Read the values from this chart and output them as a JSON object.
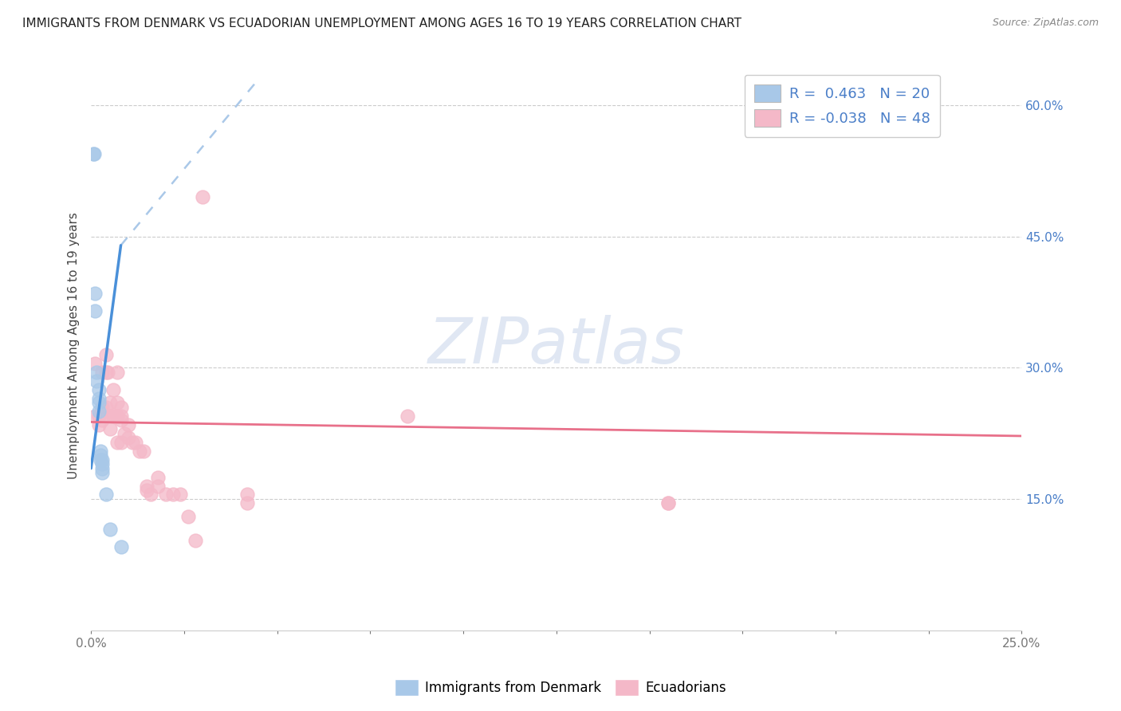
{
  "title": "IMMIGRANTS FROM DENMARK VS ECUADORIAN UNEMPLOYMENT AMONG AGES 16 TO 19 YEARS CORRELATION CHART",
  "source": "Source: ZipAtlas.com",
  "ylabel": "Unemployment Among Ages 16 to 19 years",
  "xlim": [
    0.0,
    0.25
  ],
  "ylim": [
    0.0,
    0.65
  ],
  "blue_color": "#a8c8e8",
  "pink_color": "#f4b8c8",
  "blue_line_color": "#4a90d9",
  "pink_line_color": "#e8708a",
  "dashed_line_color": "#aac8e8",
  "watermark": "ZIPatlas",
  "denmark_points": [
    [
      0.0005,
      0.545
    ],
    [
      0.0008,
      0.545
    ],
    [
      0.001,
      0.385
    ],
    [
      0.001,
      0.365
    ],
    [
      0.0015,
      0.295
    ],
    [
      0.0015,
      0.285
    ],
    [
      0.002,
      0.275
    ],
    [
      0.002,
      0.265
    ],
    [
      0.002,
      0.26
    ],
    [
      0.002,
      0.25
    ],
    [
      0.0025,
      0.205
    ],
    [
      0.0025,
      0.2
    ],
    [
      0.0025,
      0.195
    ],
    [
      0.003,
      0.195
    ],
    [
      0.003,
      0.19
    ],
    [
      0.003,
      0.185
    ],
    [
      0.003,
      0.18
    ],
    [
      0.004,
      0.155
    ],
    [
      0.005,
      0.115
    ],
    [
      0.008,
      0.095
    ]
  ],
  "ecuador_points": [
    [
      0.001,
      0.305
    ],
    [
      0.001,
      0.245
    ],
    [
      0.002,
      0.245
    ],
    [
      0.002,
      0.235
    ],
    [
      0.003,
      0.295
    ],
    [
      0.003,
      0.255
    ],
    [
      0.003,
      0.24
    ],
    [
      0.004,
      0.315
    ],
    [
      0.004,
      0.295
    ],
    [
      0.004,
      0.255
    ],
    [
      0.0045,
      0.295
    ],
    [
      0.005,
      0.26
    ],
    [
      0.005,
      0.245
    ],
    [
      0.005,
      0.23
    ],
    [
      0.006,
      0.275
    ],
    [
      0.006,
      0.245
    ],
    [
      0.006,
      0.245
    ],
    [
      0.007,
      0.295
    ],
    [
      0.007,
      0.26
    ],
    [
      0.007,
      0.245
    ],
    [
      0.007,
      0.245
    ],
    [
      0.007,
      0.215
    ],
    [
      0.008,
      0.255
    ],
    [
      0.008,
      0.245
    ],
    [
      0.008,
      0.24
    ],
    [
      0.008,
      0.215
    ],
    [
      0.009,
      0.225
    ],
    [
      0.01,
      0.235
    ],
    [
      0.01,
      0.22
    ],
    [
      0.011,
      0.215
    ],
    [
      0.012,
      0.215
    ],
    [
      0.013,
      0.205
    ],
    [
      0.014,
      0.205
    ],
    [
      0.015,
      0.165
    ],
    [
      0.015,
      0.16
    ],
    [
      0.016,
      0.155
    ],
    [
      0.018,
      0.175
    ],
    [
      0.018,
      0.165
    ],
    [
      0.02,
      0.155
    ],
    [
      0.022,
      0.155
    ],
    [
      0.024,
      0.155
    ],
    [
      0.026,
      0.13
    ],
    [
      0.028,
      0.103
    ],
    [
      0.03,
      0.495
    ],
    [
      0.042,
      0.155
    ],
    [
      0.042,
      0.145
    ],
    [
      0.085,
      0.245
    ],
    [
      0.155,
      0.145
    ],
    [
      0.155,
      0.145
    ]
  ],
  "denmark_trendline_solid": [
    [
      0.0,
      0.185
    ],
    [
      0.008,
      0.44
    ]
  ],
  "denmark_trendline_dashed": [
    [
      0.008,
      0.44
    ],
    [
      0.044,
      0.625
    ]
  ],
  "ecuador_trendline": [
    [
      0.0,
      0.238
    ],
    [
      0.25,
      0.222
    ]
  ]
}
